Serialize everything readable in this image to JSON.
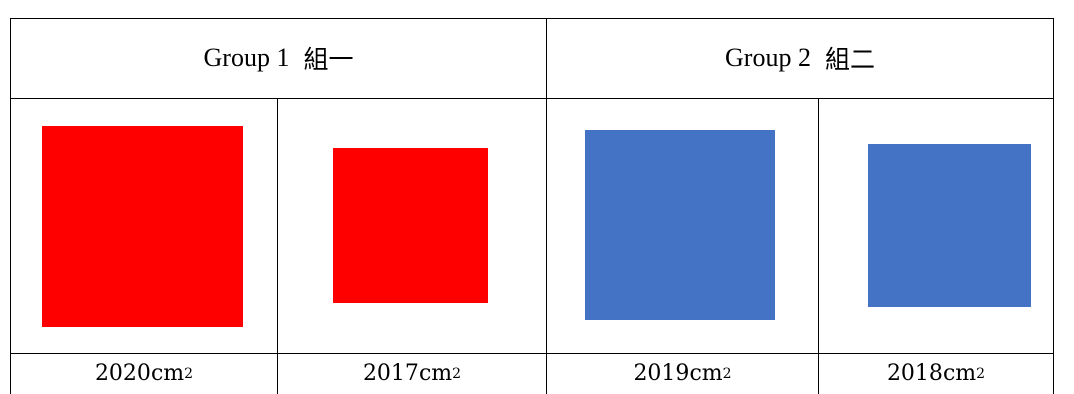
{
  "groups": [
    {
      "label": "Group 1",
      "label_zh": "組一"
    },
    {
      "label": "Group 2",
      "label_zh": "組二"
    }
  ],
  "items": [
    {
      "value": "2020",
      "unit": "cm",
      "exponent": "2",
      "color": "#ff0000"
    },
    {
      "value": "2017",
      "unit": "cm",
      "exponent": "2",
      "color": "#ff0000"
    },
    {
      "value": "2019",
      "unit": "cm",
      "exponent": "2",
      "color": "#4472c4"
    },
    {
      "value": "2018",
      "unit": "cm",
      "exponent": "2",
      "color": "#4472c4"
    }
  ]
}
